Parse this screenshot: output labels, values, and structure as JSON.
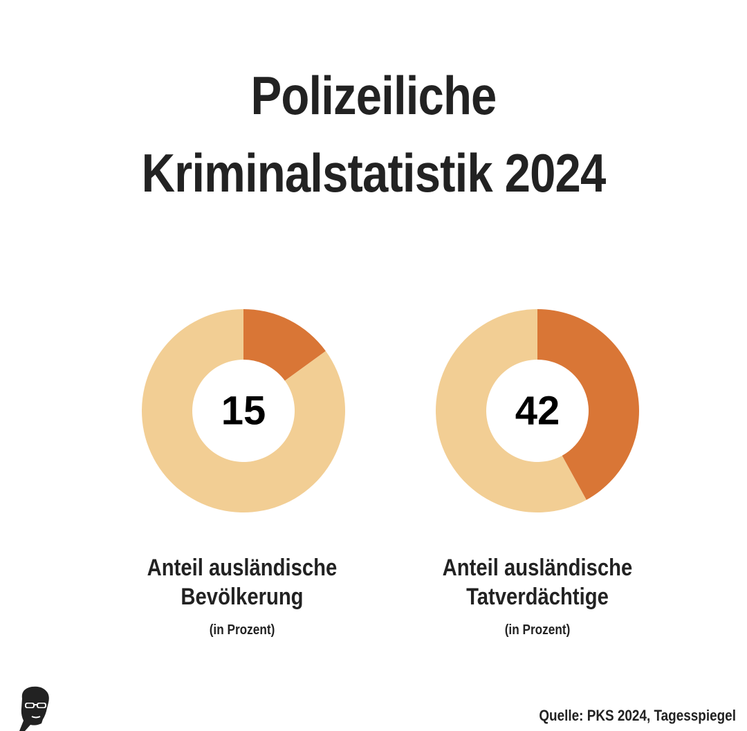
{
  "title_line1": "Polizeiliche",
  "title_line2": "Kriminalstatistik 2024",
  "source": "Quelle: PKS 2024, Tagesspiegel",
  "colors": {
    "highlight": "#D97636",
    "rest": "#F2CE94",
    "text": "#222222",
    "background": "#ffffff"
  },
  "chart_data": [
    {
      "type": "pie",
      "value": 15,
      "total": 100,
      "value_label": "15",
      "caption_line1": "Anteil ausländische",
      "caption_line2": "Bevölkerung",
      "unit": "(in Prozent)"
    },
    {
      "type": "pie",
      "value": 42,
      "total": 100,
      "value_label": "42",
      "caption_line1": "Anteil ausländische",
      "caption_line2": "Tatverdächtige",
      "unit": "(in Prozent)"
    }
  ],
  "logo": {
    "icon": "man-with-sunglasses-icon"
  }
}
